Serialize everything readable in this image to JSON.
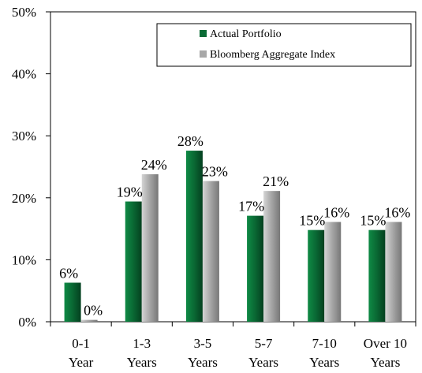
{
  "chart_data": {
    "type": "bar",
    "categories": [
      [
        "0-1",
        "Year"
      ],
      [
        "1-3",
        "Years"
      ],
      [
        "3-5",
        "Years"
      ],
      [
        "5-7",
        "Years"
      ],
      [
        "7-10",
        "Years"
      ],
      [
        "Over 10",
        "Years"
      ]
    ],
    "series": [
      {
        "name": "Actual Portfolio",
        "color": "#0a6b35",
        "values": [
          6.3,
          19.4,
          27.6,
          17.1,
          14.8,
          14.8
        ],
        "labels": [
          "6%",
          "19%",
          "28%",
          "17%",
          "15%",
          "15%"
        ]
      },
      {
        "name": "Bloomberg Aggregate Index",
        "color": "#a8a8a8",
        "values": [
          0.3,
          23.8,
          22.7,
          21.1,
          16.1,
          16.1
        ],
        "labels": [
          "0%",
          "24%",
          "23%",
          "21%",
          "16%",
          "16%"
        ]
      }
    ],
    "ylim": [
      0,
      50
    ],
    "yticks": [
      "0%",
      "10%",
      "20%",
      "30%",
      "40%",
      "50%"
    ],
    "legend_position": "top-right",
    "grid": false
  }
}
